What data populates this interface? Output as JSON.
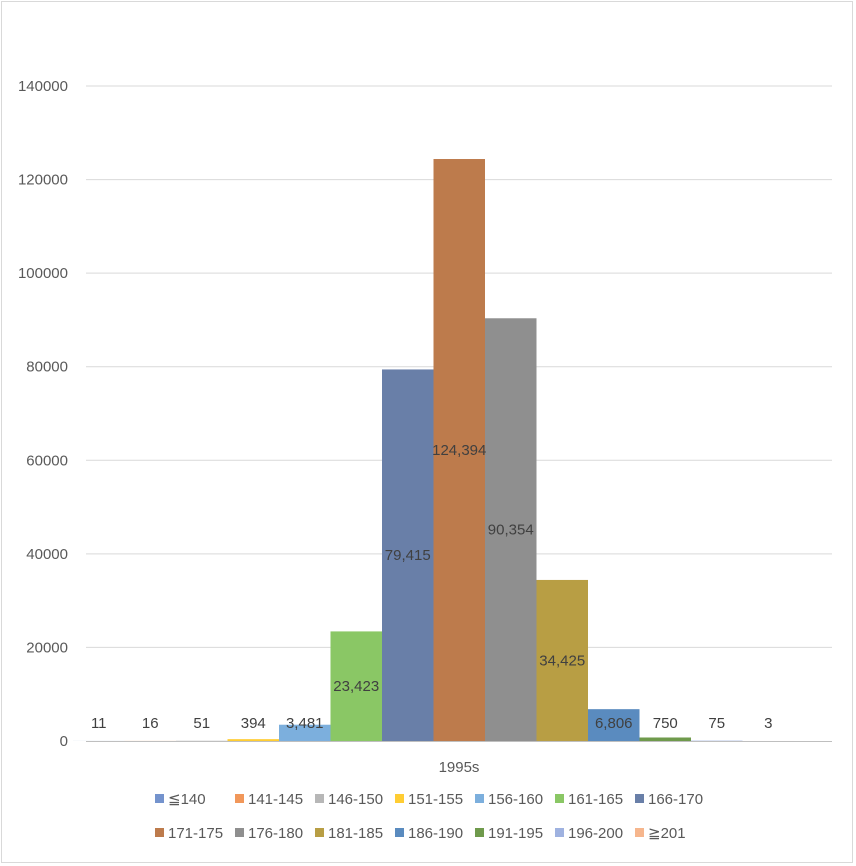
{
  "chart_data": {
    "type": "bar",
    "categories": [
      "1995s"
    ],
    "series": [
      {
        "name": "≦140",
        "values": [
          11
        ],
        "label": "11",
        "color": "#7493cd"
      },
      {
        "name": "141-145",
        "values": [
          16
        ],
        "label": "16",
        "color": "#f1975a"
      },
      {
        "name": "146-150",
        "values": [
          51
        ],
        "label": "51",
        "color": "#b7b7b7"
      },
      {
        "name": "151-155",
        "values": [
          394
        ],
        "label": "394",
        "color": "#ffcd33"
      },
      {
        "name": "156-160",
        "values": [
          3481
        ],
        "label": "3,481",
        "color": "#7cafdd"
      },
      {
        "name": "161-165",
        "values": [
          23423
        ],
        "label": "23,423",
        "color": "#8ac765"
      },
      {
        "name": "166-170",
        "values": [
          79415
        ],
        "label": "79,415",
        "color": "#697fa8"
      },
      {
        "name": "171-175",
        "values": [
          124394
        ],
        "label": "124,394",
        "color": "#bd7b4c"
      },
      {
        "name": "176-180",
        "values": [
          90354
        ],
        "label": "90,354",
        "color": "#8f8f8f"
      },
      {
        "name": "181-185",
        "values": [
          34425
        ],
        "label": "34,425",
        "color": "#b89e44"
      },
      {
        "name": "186-190",
        "values": [
          6806
        ],
        "label": "6,806",
        "color": "#5a8bbf"
      },
      {
        "name": "191-195",
        "values": [
          750
        ],
        "label": "750",
        "color": "#6f9a4c"
      },
      {
        "name": "196-200",
        "values": [
          75
        ],
        "label": "75",
        "color": "#9fb2e0"
      },
      {
        "name": "≧201",
        "values": [
          3
        ],
        "label": "3",
        "color": "#f6b68d"
      }
    ],
    "yticks": [
      "0",
      "20000",
      "40000",
      "60000",
      "80000",
      "100000",
      "120000",
      "140000"
    ],
    "ylim": [
      0,
      140000
    ],
    "grid": true,
    "legend_position": "bottom"
  }
}
